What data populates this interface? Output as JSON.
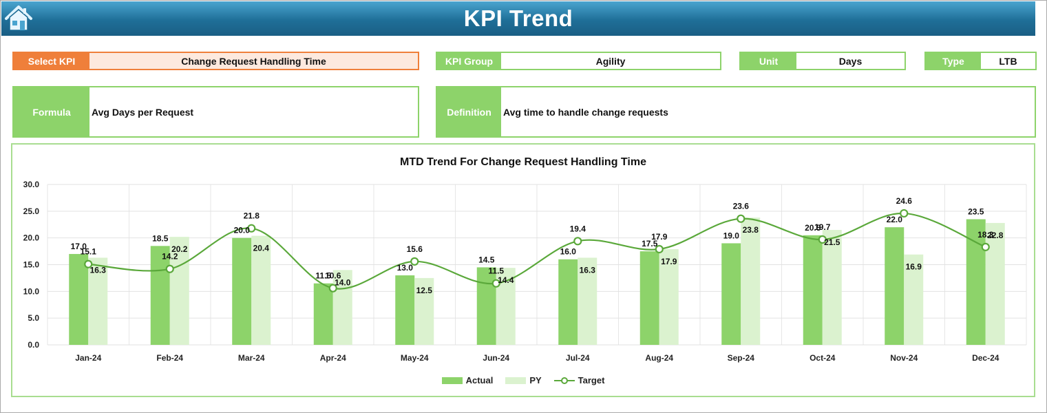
{
  "header": {
    "title": "KPI Trend"
  },
  "kpi_select": {
    "label": "Select KPI",
    "value": "Change Request Handling Time"
  },
  "kpi_group": {
    "label": "KPI Group",
    "value": "Agility"
  },
  "unit": {
    "label": "Unit",
    "value": "Days"
  },
  "type": {
    "label": "Type",
    "value": "LTB"
  },
  "formula": {
    "label": "Formula",
    "value": "Avg Days per Request"
  },
  "definition": {
    "label": "Definition",
    "value": "Avg time to handle change requests"
  },
  "colors": {
    "actual": "#8dd36a",
    "py": "#dbf2cf",
    "target": "#5aa83a",
    "header": "#1f6f98",
    "select": "#ef7f3a"
  },
  "chart_data": {
    "type": "bar",
    "title": "MTD Trend For Change Request Handling Time",
    "categories": [
      "Jan-24",
      "Feb-24",
      "Mar-24",
      "Apr-24",
      "May-24",
      "Jun-24",
      "Jul-24",
      "Aug-24",
      "Sep-24",
      "Oct-24",
      "Nov-24",
      "Dec-24"
    ],
    "series": [
      {
        "name": "Actual",
        "kind": "bar",
        "values": [
          17.0,
          18.5,
          20.0,
          11.5,
          13.0,
          14.5,
          16.0,
          17.5,
          19.0,
          20.5,
          22.0,
          23.5
        ]
      },
      {
        "name": "PY",
        "kind": "bar",
        "values": [
          16.3,
          20.2,
          20.4,
          14.0,
          12.5,
          14.4,
          16.3,
          17.9,
          23.8,
          21.5,
          16.9,
          22.8
        ]
      },
      {
        "name": "Target",
        "kind": "line",
        "values": [
          15.1,
          14.2,
          21.8,
          10.6,
          15.6,
          11.5,
          19.4,
          17.9,
          23.6,
          19.7,
          24.6,
          18.3
        ]
      }
    ],
    "ylim": [
      0,
      30
    ],
    "yticks": [
      "0.0",
      "5.0",
      "10.0",
      "15.0",
      "20.0",
      "25.0",
      "30.0"
    ],
    "grid": true,
    "legend": "bottom"
  }
}
